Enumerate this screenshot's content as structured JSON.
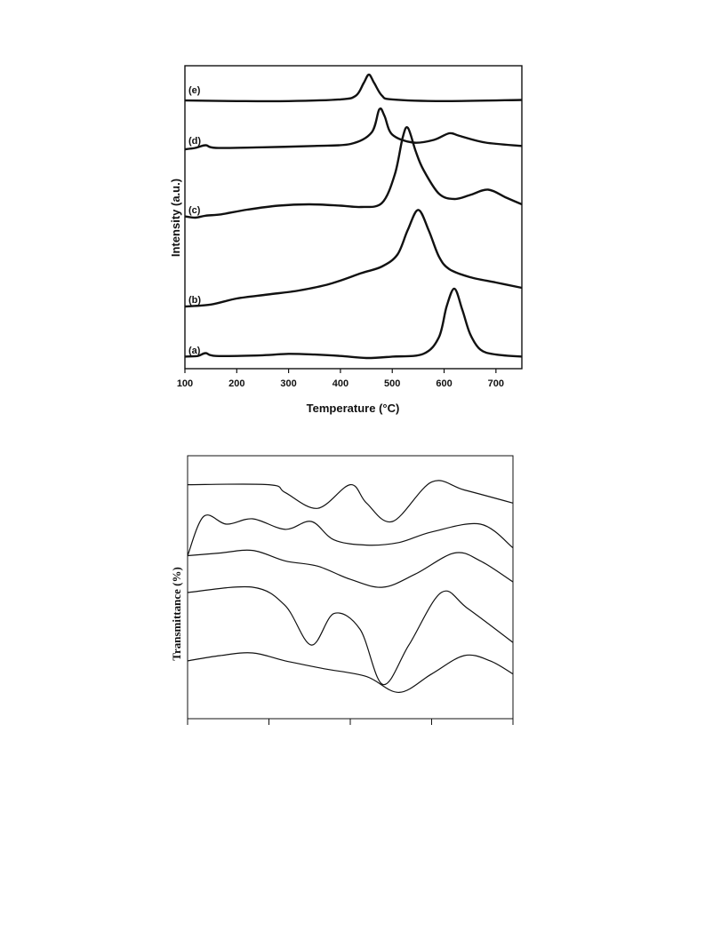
{
  "chart_data": [
    {
      "type": "line",
      "title": "",
      "xlabel": "Temperature (°C)",
      "ylabel": "Intensity (a.u.)",
      "xlim": [
        100,
        750
      ],
      "x_ticks": [
        100,
        200,
        300,
        400,
        500,
        600,
        700
      ],
      "y_ticks_labeled": false,
      "grid": false,
      "series": [
        {
          "name": "(a)",
          "baseline": 0.0,
          "points": [
            [
              100,
              0.02
            ],
            [
              125,
              0.03
            ],
            [
              140,
              0.07
            ],
            [
              160,
              0.03
            ],
            [
              250,
              0.04
            ],
            [
              300,
              0.06
            ],
            [
              350,
              0.05
            ],
            [
              400,
              0.03
            ],
            [
              450,
              0.0
            ],
            [
              500,
              0.02
            ],
            [
              560,
              0.06
            ],
            [
              590,
              0.3
            ],
            [
              605,
              0.75
            ],
            [
              620,
              1.0
            ],
            [
              635,
              0.7
            ],
            [
              650,
              0.35
            ],
            [
              670,
              0.12
            ],
            [
              700,
              0.05
            ],
            [
              750,
              0.02
            ]
          ]
        },
        {
          "name": "(b)",
          "baseline": 0.0,
          "points": [
            [
              100,
              0.0
            ],
            [
              150,
              0.03
            ],
            [
              200,
              0.12
            ],
            [
              260,
              0.18
            ],
            [
              320,
              0.24
            ],
            [
              380,
              0.34
            ],
            [
              440,
              0.5
            ],
            [
              480,
              0.6
            ],
            [
              510,
              0.78
            ],
            [
              530,
              1.15
            ],
            [
              550,
              1.45
            ],
            [
              570,
              1.15
            ],
            [
              590,
              0.75
            ],
            [
              610,
              0.56
            ],
            [
              650,
              0.44
            ],
            [
              700,
              0.36
            ],
            [
              750,
              0.28
            ]
          ]
        },
        {
          "name": "(c)",
          "baseline": 0.0,
          "points": [
            [
              100,
              0.02
            ],
            [
              120,
              0.0
            ],
            [
              140,
              0.03
            ],
            [
              170,
              0.05
            ],
            [
              220,
              0.12
            ],
            [
              280,
              0.18
            ],
            [
              340,
              0.2
            ],
            [
              400,
              0.18
            ],
            [
              440,
              0.16
            ],
            [
              480,
              0.22
            ],
            [
              505,
              0.65
            ],
            [
              520,
              1.2
            ],
            [
              530,
              1.35
            ],
            [
              545,
              1.0
            ],
            [
              560,
              0.72
            ],
            [
              590,
              0.36
            ],
            [
              620,
              0.28
            ],
            [
              650,
              0.34
            ],
            [
              685,
              0.42
            ],
            [
              720,
              0.3
            ],
            [
              750,
              0.2
            ]
          ]
        },
        {
          "name": "(d)",
          "baseline": 0.0,
          "points": [
            [
              100,
              0.0
            ],
            [
              120,
              0.02
            ],
            [
              140,
              0.06
            ],
            [
              160,
              0.02
            ],
            [
              250,
              0.03
            ],
            [
              350,
              0.05
            ],
            [
              420,
              0.08
            ],
            [
              460,
              0.25
            ],
            [
              475,
              0.6
            ],
            [
              485,
              0.5
            ],
            [
              500,
              0.22
            ],
            [
              540,
              0.1
            ],
            [
              580,
              0.14
            ],
            [
              610,
              0.24
            ],
            [
              630,
              0.2
            ],
            [
              680,
              0.1
            ],
            [
              750,
              0.05
            ]
          ]
        },
        {
          "name": "(e)",
          "baseline": 0.0,
          "points": [
            [
              100,
              0.03
            ],
            [
              200,
              0.02
            ],
            [
              300,
              0.02
            ],
            [
              400,
              0.05
            ],
            [
              430,
              0.12
            ],
            [
              445,
              0.35
            ],
            [
              455,
              0.5
            ],
            [
              465,
              0.35
            ],
            [
              480,
              0.12
            ],
            [
              500,
              0.05
            ],
            [
              600,
              0.02
            ],
            [
              750,
              0.04
            ]
          ]
        }
      ]
    },
    {
      "type": "line",
      "title": "",
      "xlabel": "",
      "ylabel": "Transmittance (%)",
      "x_ticks_labeled": false,
      "y_ticks_labeled": false,
      "grid": false,
      "series": [
        {
          "name": "",
          "points": [
            [
              0,
              0.89
            ],
            [
              0.25,
              0.89
            ],
            [
              0.3,
              0.86
            ],
            [
              0.4,
              0.8
            ],
            [
              0.5,
              0.89
            ],
            [
              0.55,
              0.82
            ],
            [
              0.63,
              0.75
            ],
            [
              0.75,
              0.9
            ],
            [
              0.85,
              0.87
            ],
            [
              1.0,
              0.82
            ]
          ]
        },
        {
          "name": "",
          "points": [
            [
              0,
              0.62
            ],
            [
              0.05,
              0.77
            ],
            [
              0.12,
              0.74
            ],
            [
              0.2,
              0.76
            ],
            [
              0.3,
              0.72
            ],
            [
              0.38,
              0.75
            ],
            [
              0.45,
              0.68
            ],
            [
              0.55,
              0.66
            ],
            [
              0.65,
              0.67
            ],
            [
              0.75,
              0.71
            ],
            [
              0.9,
              0.74
            ],
            [
              1.0,
              0.65
            ]
          ]
        },
        {
          "name": "",
          "points": [
            [
              0,
              0.62
            ],
            [
              0.1,
              0.63
            ],
            [
              0.2,
              0.64
            ],
            [
              0.3,
              0.6
            ],
            [
              0.4,
              0.58
            ],
            [
              0.5,
              0.53
            ],
            [
              0.6,
              0.5
            ],
            [
              0.7,
              0.55
            ],
            [
              0.82,
              0.63
            ],
            [
              0.9,
              0.6
            ],
            [
              1.0,
              0.52
            ]
          ]
        },
        {
          "name": "",
          "points": [
            [
              0,
              0.48
            ],
            [
              0.2,
              0.5
            ],
            [
              0.3,
              0.43
            ],
            [
              0.38,
              0.28
            ],
            [
              0.45,
              0.4
            ],
            [
              0.53,
              0.34
            ],
            [
              0.6,
              0.13
            ],
            [
              0.68,
              0.28
            ],
            [
              0.78,
              0.48
            ],
            [
              0.86,
              0.42
            ],
            [
              1.0,
              0.29
            ]
          ]
        },
        {
          "name": "",
          "points": [
            [
              0,
              0.22
            ],
            [
              0.1,
              0.24
            ],
            [
              0.2,
              0.25
            ],
            [
              0.3,
              0.22
            ],
            [
              0.42,
              0.19
            ],
            [
              0.55,
              0.16
            ],
            [
              0.65,
              0.1
            ],
            [
              0.75,
              0.17
            ],
            [
              0.85,
              0.24
            ],
            [
              0.93,
              0.22
            ],
            [
              1.0,
              0.17
            ]
          ]
        }
      ]
    }
  ]
}
